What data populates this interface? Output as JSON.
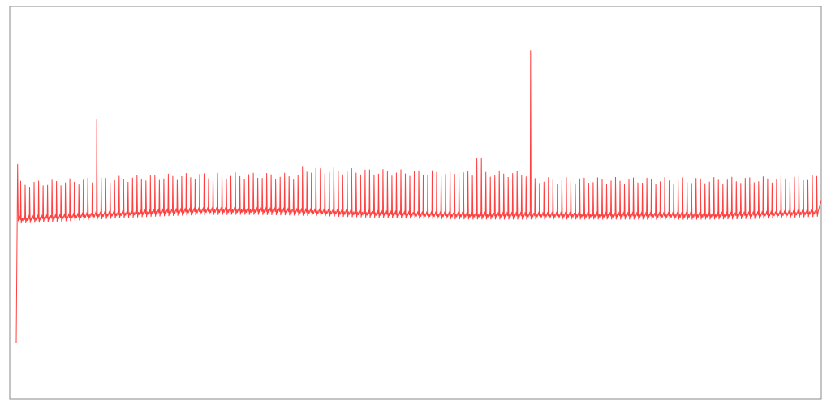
{
  "chart_data": {
    "type": "line",
    "title": "",
    "xlabel": "",
    "ylabel": "",
    "grid": false,
    "legend": "none",
    "series": [
      {
        "color": "#ff4040",
        "baseline_start": -5,
        "baseline_end": 10,
        "peak_height": 65,
        "spikes": [
          {
            "at": 0.1,
            "height": 175
          },
          {
            "at": 0.575,
            "height": 105
          },
          {
            "at": 0.64,
            "height": 300
          }
        ],
        "cycles": 180,
        "start_value": -230,
        "x_range": [
          0,
          180
        ]
      }
    ],
    "xlim": [
      0,
      180
    ],
    "ylim": [
      -330,
      380
    ]
  },
  "colors": {
    "line": "#ff4040",
    "frame": "#888888",
    "background": "#ffffff"
  }
}
